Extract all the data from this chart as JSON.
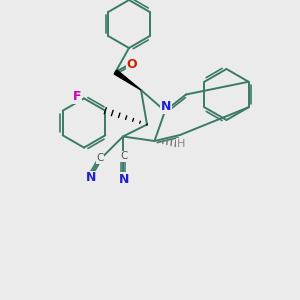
{
  "bg_color": "#ebebeb",
  "bond_color": "#3a7a68",
  "bond_lw": 1.4,
  "N_color": "#2020cc",
  "O_color": "#cc2200",
  "F_color": "#cc00bb",
  "C_label_color": "#555555",
  "H_color": "#888888",
  "N_label": "N",
  "O_label": "O",
  "F_label": "F",
  "C_label": "C",
  "H_label": "H",
  "N_fontsize": 9,
  "label_fontsize": 8,
  "small_fontsize": 7.5
}
